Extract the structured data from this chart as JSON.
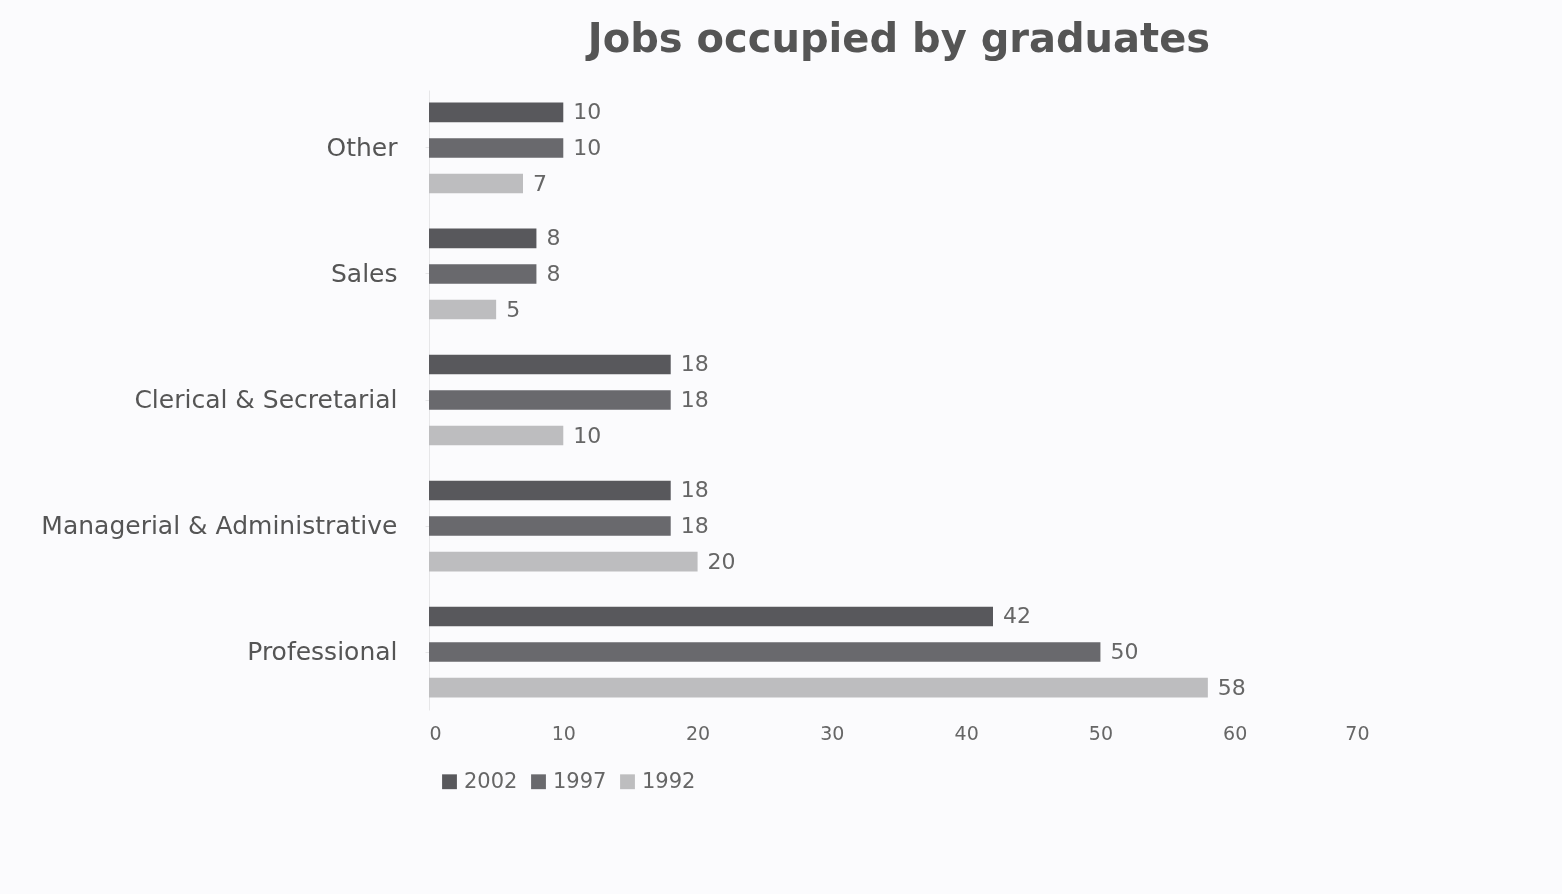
{
  "chart_data": {
    "type": "bar",
    "orientation": "horizontal",
    "title": "Jobs occupied by graduates",
    "categories": [
      "Other",
      "Sales",
      "Clerical & Secretarial",
      "Managerial & Administrative",
      "Professional"
    ],
    "series": [
      {
        "name": "2002",
        "color": "#58585c",
        "values": [
          10,
          8,
          18,
          18,
          42
        ]
      },
      {
        "name": "1997",
        "color": "#69696d",
        "values": [
          10,
          8,
          18,
          18,
          50
        ]
      },
      {
        "name": "1992",
        "color": "#bdbdbf",
        "values": [
          7,
          5,
          10,
          20,
          58
        ]
      }
    ],
    "xlim": [
      0,
      70
    ],
    "xticks": [
      0,
      10,
      20,
      30,
      40,
      50,
      60,
      70
    ],
    "grid": false,
    "legend": "bottom",
    "data_labels": true
  }
}
